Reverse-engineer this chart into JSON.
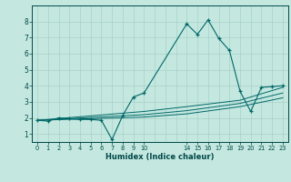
{
  "title": "",
  "xlabel": "Humidex (Indice chaleur)",
  "ylabel": "",
  "background_color": "#c4e8e0",
  "grid_color": "#a8d0c8",
  "line_color": "#006868",
  "xlim": [
    -0.5,
    23.5
  ],
  "ylim": [
    0.5,
    9.0
  ],
  "xticks": [
    0,
    1,
    2,
    3,
    4,
    5,
    6,
    7,
    8,
    9,
    10,
    14,
    15,
    16,
    17,
    18,
    19,
    20,
    21,
    22,
    23
  ],
  "xtick_labels": [
    "0",
    "1",
    "2",
    "3",
    "4",
    "5",
    "6",
    "7",
    "8",
    "9",
    "10",
    "14",
    "15",
    "16",
    "17",
    "18",
    "19",
    "20",
    "21",
    "22",
    "23"
  ],
  "yticks": [
    1,
    2,
    3,
    4,
    5,
    6,
    7,
    8
  ],
  "series": [
    [
      0,
      1.85
    ],
    [
      1,
      1.8
    ],
    [
      2,
      2.0
    ],
    [
      3,
      1.95
    ],
    [
      4,
      1.9
    ],
    [
      5,
      1.9
    ],
    [
      6,
      1.85
    ],
    [
      7,
      0.65
    ],
    [
      8,
      2.15
    ],
    [
      9,
      3.3
    ],
    [
      10,
      3.55
    ],
    [
      14,
      7.85
    ],
    [
      15,
      7.2
    ],
    [
      16,
      8.1
    ],
    [
      17,
      6.95
    ],
    [
      18,
      6.2
    ],
    [
      19,
      3.65
    ],
    [
      20,
      2.4
    ],
    [
      21,
      3.9
    ],
    [
      22,
      3.95
    ],
    [
      23,
      4.0
    ]
  ],
  "trend1": [
    [
      0,
      1.85
    ],
    [
      10,
      2.4
    ],
    [
      14,
      2.7
    ],
    [
      19,
      3.1
    ],
    [
      23,
      3.9
    ]
  ],
  "trend2": [
    [
      0,
      1.85
    ],
    [
      10,
      2.2
    ],
    [
      14,
      2.45
    ],
    [
      19,
      2.9
    ],
    [
      23,
      3.55
    ]
  ],
  "trend3": [
    [
      0,
      1.85
    ],
    [
      10,
      2.05
    ],
    [
      14,
      2.25
    ],
    [
      19,
      2.7
    ],
    [
      23,
      3.25
    ]
  ]
}
